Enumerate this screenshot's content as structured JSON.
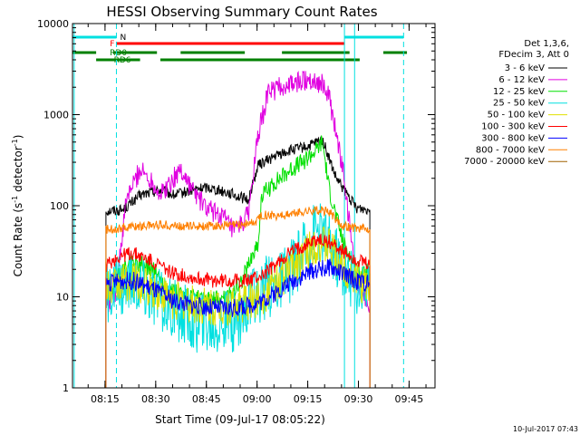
{
  "chart_data": {
    "type": "line",
    "title": "HESSI Observing Summary Count Rates",
    "xlabel": "Start Time (09-Jul-17 08:05:22)",
    "ylabel_main": "Count Rate (s",
    "ylabel_sup": "-1",
    "ylabel_mid": " detector",
    "ylabel_sup2": "-1",
    "ylabel_end": ")",
    "y_scale": "log",
    "ylim": [
      1,
      10000
    ],
    "xlim_minutes_from_start": [
      0,
      107.3
    ],
    "x_ticks": [
      {
        "label": "08:15",
        "min": 9.63
      },
      {
        "label": "08:30",
        "min": 24.63
      },
      {
        "label": "08:45",
        "min": 39.63
      },
      {
        "label": "09:00",
        "min": 54.63
      },
      {
        "label": "09:15",
        "min": 69.63
      },
      {
        "label": "09:30",
        "min": 84.63
      },
      {
        "label": "09:45",
        "min": 99.63
      }
    ],
    "y_ticks": [
      {
        "label": "1",
        "v": 1
      },
      {
        "label": "10",
        "v": 10
      },
      {
        "label": "100",
        "v": 100
      },
      {
        "label": "1000",
        "v": 1000
      },
      {
        "label": "10000",
        "v": 10000
      }
    ],
    "legend_header": [
      "Det 1,3,6,",
      "FDecim 3, Att 0"
    ],
    "legend_placement": "right",
    "series": [
      {
        "name": "3 - 6 keV",
        "color": "#000000",
        "points": [
          [
            9.9,
            88
          ],
          [
            15,
            90
          ],
          [
            20,
            130
          ],
          [
            26,
            150
          ],
          [
            30,
            130
          ],
          [
            36,
            150
          ],
          [
            40,
            160
          ],
          [
            46,
            140
          ],
          [
            52,
            115
          ],
          [
            55,
            280
          ],
          [
            60,
            350
          ],
          [
            64,
            400
          ],
          [
            70,
            450
          ],
          [
            74,
            530
          ],
          [
            78,
            200
          ],
          [
            84,
            95
          ],
          [
            88,
            90
          ]
        ]
      },
      {
        "name": "6 - 12 keV",
        "color": "#e000e0",
        "points": [
          [
            9.9,
            8
          ],
          [
            13,
            12
          ],
          [
            16,
            120
          ],
          [
            20,
            250
          ],
          [
            24,
            180
          ],
          [
            26,
            130
          ],
          [
            30,
            200
          ],
          [
            32,
            250
          ],
          [
            36,
            140
          ],
          [
            40,
            90
          ],
          [
            44,
            80
          ],
          [
            48,
            50
          ],
          [
            52,
            80
          ],
          [
            55,
            600
          ],
          [
            58,
            1800
          ],
          [
            62,
            2000
          ],
          [
            66,
            2200
          ],
          [
            70,
            2500
          ],
          [
            74,
            2200
          ],
          [
            76,
            1500
          ],
          [
            80,
            250
          ],
          [
            84,
            15
          ],
          [
            88,
            8
          ]
        ]
      },
      {
        "name": "12 - 25 keV",
        "color": "#00e000",
        "points": [
          [
            9.9,
            10
          ],
          [
            14,
            18
          ],
          [
            18,
            25
          ],
          [
            24,
            20
          ],
          [
            28,
            12
          ],
          [
            34,
            10
          ],
          [
            40,
            9
          ],
          [
            46,
            10
          ],
          [
            50,
            15
          ],
          [
            55,
            40
          ],
          [
            56,
            130
          ],
          [
            60,
            180
          ],
          [
            64,
            240
          ],
          [
            68,
            300
          ],
          [
            72,
            400
          ],
          [
            74,
            500
          ],
          [
            76,
            150
          ],
          [
            80,
            40
          ],
          [
            84,
            20
          ],
          [
            88,
            18
          ]
        ]
      },
      {
        "name": "25 - 50 keV",
        "color": "#00e0e0",
        "points": [
          [
            9.9,
            10
          ],
          [
            14,
            13
          ],
          [
            18,
            15
          ],
          [
            24,
            10
          ],
          [
            30,
            7
          ],
          [
            36,
            5.5
          ],
          [
            42,
            5
          ],
          [
            48,
            5.5
          ],
          [
            52,
            8
          ],
          [
            56,
            12
          ],
          [
            60,
            14
          ],
          [
            64,
            18
          ],
          [
            68,
            30
          ],
          [
            72,
            60
          ],
          [
            74,
            50
          ],
          [
            78,
            30
          ],
          [
            82,
            15
          ],
          [
            86,
            14
          ],
          [
            88,
            12
          ]
        ]
      },
      {
        "name": "50 - 100 keV",
        "color": "#e0e000",
        "points": [
          [
            9.9,
            12
          ],
          [
            14,
            14
          ],
          [
            18,
            15
          ],
          [
            24,
            12
          ],
          [
            30,
            9
          ],
          [
            36,
            8
          ],
          [
            42,
            7.5
          ],
          [
            48,
            8
          ],
          [
            52,
            8.5
          ],
          [
            56,
            10
          ],
          [
            60,
            14
          ],
          [
            64,
            20
          ],
          [
            68,
            28
          ],
          [
            72,
            38
          ],
          [
            76,
            35
          ],
          [
            80,
            22
          ],
          [
            84,
            15
          ],
          [
            88,
            12
          ]
        ]
      },
      {
        "name": "100 - 300 keV",
        "color": "#ff0000",
        "points": [
          [
            9.9,
            22
          ],
          [
            14,
            28
          ],
          [
            18,
            30
          ],
          [
            24,
            24
          ],
          [
            30,
            18
          ],
          [
            36,
            16
          ],
          [
            42,
            15
          ],
          [
            48,
            15
          ],
          [
            52,
            15
          ],
          [
            56,
            17
          ],
          [
            60,
            22
          ],
          [
            64,
            30
          ],
          [
            68,
            36
          ],
          [
            72,
            42
          ],
          [
            76,
            40
          ],
          [
            80,
            32
          ],
          [
            84,
            25
          ],
          [
            88,
            22
          ]
        ]
      },
      {
        "name": "300 - 800 keV",
        "color": "#0000ff",
        "points": [
          [
            9.9,
            14
          ],
          [
            14,
            15
          ],
          [
            18,
            15
          ],
          [
            24,
            12
          ],
          [
            30,
            9
          ],
          [
            36,
            8
          ],
          [
            42,
            7.5
          ],
          [
            48,
            7.5
          ],
          [
            52,
            8
          ],
          [
            56,
            9
          ],
          [
            60,
            11
          ],
          [
            64,
            14
          ],
          [
            68,
            17
          ],
          [
            72,
            20
          ],
          [
            76,
            21
          ],
          [
            80,
            18
          ],
          [
            84,
            15
          ],
          [
            88,
            14
          ]
        ]
      },
      {
        "name": "800 - 7000 keV",
        "color": "#ff8000",
        "points": [
          [
            9.9,
            55
          ],
          [
            14,
            57
          ],
          [
            20,
            60
          ],
          [
            26,
            62
          ],
          [
            32,
            60
          ],
          [
            38,
            60
          ],
          [
            44,
            60
          ],
          [
            50,
            62
          ],
          [
            54,
            65
          ],
          [
            56,
            80
          ],
          [
            60,
            78
          ],
          [
            64,
            80
          ],
          [
            68,
            85
          ],
          [
            72,
            90
          ],
          [
            76,
            85
          ],
          [
            80,
            60
          ],
          [
            84,
            57
          ],
          [
            88,
            55
          ]
        ]
      },
      {
        "name": "7000 - 20000 keV",
        "color": "#a06000",
        "points": []
      }
    ]
  },
  "flags": [
    {
      "label": "N",
      "color": "#00e0e0",
      "start": 0,
      "end": 13
    },
    {
      "label": "",
      "color": "#00e0e0",
      "start": 80.5,
      "end": 98
    }
  ],
  "flags2": [
    {
      "label": "F",
      "color": "#ff0000",
      "start": 13,
      "end": 80.5
    },
    {
      "label": "RD0",
      "color": "#008000",
      "start": 0,
      "end": 7
    },
    {
      "label": "",
      "color": "#008000",
      "start": 12,
      "end": 25
    },
    {
      "label": "",
      "color": "#008000",
      "start": 32,
      "end": 51
    },
    {
      "label": "",
      "color": "#008000",
      "start": 62,
      "end": 82
    },
    {
      "label": "",
      "color": "#008000",
      "start": 92,
      "end": 99
    },
    {
      "label": "RD6",
      "color": "#008000",
      "start": 7,
      "end": 20
    },
    {
      "label": "",
      "color": "#008000",
      "start": 26,
      "end": 85
    }
  ],
  "vlines": [
    {
      "min": 0.5,
      "style": "solid",
      "color": "#00e0e0"
    },
    {
      "min": 13,
      "style": "dash",
      "color": "#00e0e0"
    },
    {
      "min": 80.5,
      "style": "solid",
      "color": "#00e0e0"
    },
    {
      "min": 83.5,
      "style": "solid",
      "color": "#00e0e0"
    },
    {
      "min": 98,
      "style": "dash",
      "color": "#00e0e0"
    }
  ],
  "footer_date": "10-Jul-2017 07:43"
}
